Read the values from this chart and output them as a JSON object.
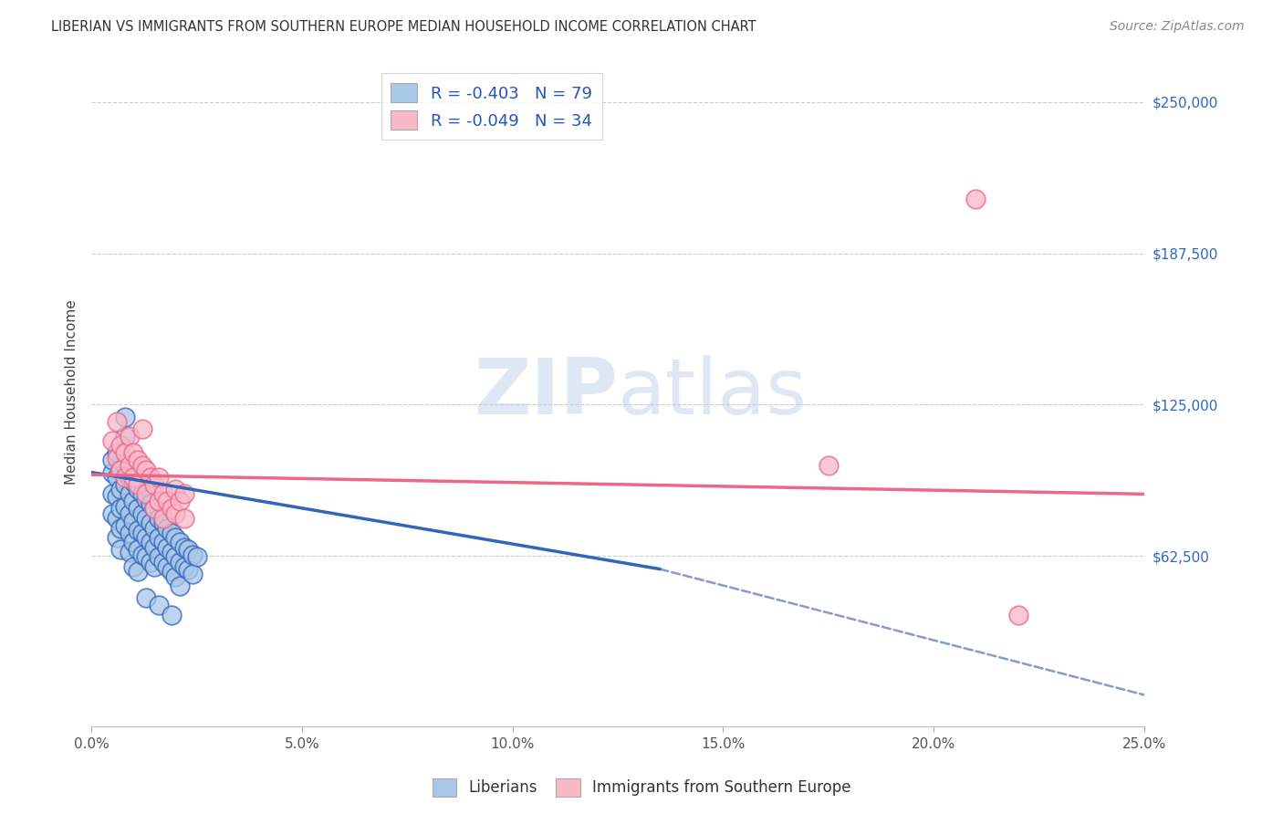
{
  "title": "LIBERIAN VS IMMIGRANTS FROM SOUTHERN EUROPE MEDIAN HOUSEHOLD INCOME CORRELATION CHART",
  "source": "Source: ZipAtlas.com",
  "ylabel": "Median Household Income",
  "xlim": [
    0.0,
    0.25
  ],
  "ylim": [
    -8000,
    268000
  ],
  "legend_blue_label": "R = -0.403   N = 79",
  "legend_pink_label": "R = -0.049   N = 34",
  "legend_label_blue": "Liberians",
  "legend_label_pink": "Immigrants from Southern Europe",
  "blue_color": "#a8c8e8",
  "pink_color": "#f8b8c8",
  "blue_line_color": "#3366bb",
  "pink_line_color": "#ee6688",
  "dashed_line_color": "#8899cc",
  "watermark_zip": "ZIP",
  "watermark_atlas": "atlas",
  "blue_points": [
    [
      0.005,
      97000
    ],
    [
      0.005,
      102000
    ],
    [
      0.005,
      88000
    ],
    [
      0.005,
      80000
    ],
    [
      0.006,
      105000
    ],
    [
      0.006,
      95000
    ],
    [
      0.006,
      87000
    ],
    [
      0.006,
      78000
    ],
    [
      0.006,
      70000
    ],
    [
      0.007,
      98000
    ],
    [
      0.007,
      90000
    ],
    [
      0.007,
      82000
    ],
    [
      0.007,
      74000
    ],
    [
      0.007,
      65000
    ],
    [
      0.008,
      120000
    ],
    [
      0.008,
      112000
    ],
    [
      0.008,
      100000
    ],
    [
      0.008,
      92000
    ],
    [
      0.008,
      83000
    ],
    [
      0.008,
      75000
    ],
    [
      0.009,
      95000
    ],
    [
      0.009,
      88000
    ],
    [
      0.009,
      80000
    ],
    [
      0.009,
      72000
    ],
    [
      0.009,
      64000
    ],
    [
      0.01,
      93000
    ],
    [
      0.01,
      85000
    ],
    [
      0.01,
      77000
    ],
    [
      0.01,
      68000
    ],
    [
      0.01,
      58000
    ],
    [
      0.011,
      90000
    ],
    [
      0.011,
      82000
    ],
    [
      0.011,
      73000
    ],
    [
      0.011,
      65000
    ],
    [
      0.011,
      56000
    ],
    [
      0.012,
      88000
    ],
    [
      0.012,
      80000
    ],
    [
      0.012,
      72000
    ],
    [
      0.012,
      63000
    ],
    [
      0.013,
      86000
    ],
    [
      0.013,
      78000
    ],
    [
      0.013,
      70000
    ],
    [
      0.013,
      62000
    ],
    [
      0.014,
      84000
    ],
    [
      0.014,
      76000
    ],
    [
      0.014,
      68000
    ],
    [
      0.014,
      60000
    ],
    [
      0.015,
      82000
    ],
    [
      0.015,
      74000
    ],
    [
      0.015,
      66000
    ],
    [
      0.015,
      58000
    ],
    [
      0.016,
      78000
    ],
    [
      0.016,
      70000
    ],
    [
      0.016,
      62000
    ],
    [
      0.017,
      76000
    ],
    [
      0.017,
      68000
    ],
    [
      0.017,
      60000
    ],
    [
      0.018,
      74000
    ],
    [
      0.018,
      66000
    ],
    [
      0.018,
      58000
    ],
    [
      0.019,
      72000
    ],
    [
      0.019,
      64000
    ],
    [
      0.019,
      56000
    ],
    [
      0.02,
      70000
    ],
    [
      0.02,
      62000
    ],
    [
      0.02,
      54000
    ],
    [
      0.021,
      68000
    ],
    [
      0.021,
      60000
    ],
    [
      0.021,
      50000
    ],
    [
      0.022,
      66000
    ],
    [
      0.022,
      58000
    ],
    [
      0.023,
      65000
    ],
    [
      0.023,
      57000
    ],
    [
      0.024,
      63000
    ],
    [
      0.024,
      55000
    ],
    [
      0.025,
      62000
    ],
    [
      0.013,
      45000
    ],
    [
      0.016,
      42000
    ],
    [
      0.019,
      38000
    ]
  ],
  "pink_points": [
    [
      0.005,
      110000
    ],
    [
      0.006,
      103000
    ],
    [
      0.006,
      118000
    ],
    [
      0.007,
      108000
    ],
    [
      0.007,
      98000
    ],
    [
      0.008,
      105000
    ],
    [
      0.008,
      95000
    ],
    [
      0.009,
      100000
    ],
    [
      0.009,
      112000
    ],
    [
      0.01,
      95000
    ],
    [
      0.01,
      105000
    ],
    [
      0.011,
      92000
    ],
    [
      0.011,
      102000
    ],
    [
      0.012,
      115000
    ],
    [
      0.012,
      100000
    ],
    [
      0.013,
      98000
    ],
    [
      0.013,
      88000
    ],
    [
      0.014,
      95000
    ],
    [
      0.015,
      92000
    ],
    [
      0.015,
      82000
    ],
    [
      0.016,
      95000
    ],
    [
      0.016,
      85000
    ],
    [
      0.017,
      88000
    ],
    [
      0.017,
      78000
    ],
    [
      0.018,
      85000
    ],
    [
      0.019,
      82000
    ],
    [
      0.02,
      90000
    ],
    [
      0.02,
      80000
    ],
    [
      0.021,
      85000
    ],
    [
      0.022,
      78000
    ],
    [
      0.022,
      88000
    ],
    [
      0.21,
      210000
    ],
    [
      0.175,
      100000
    ],
    [
      0.22,
      38000
    ]
  ],
  "blue_line_solid": {
    "x0": 0.0,
    "y0": 97000,
    "x1": 0.135,
    "y1": 57000
  },
  "blue_line_dashed": {
    "x0": 0.135,
    "y0": 57000,
    "x1": 0.25,
    "y1": 5000
  },
  "pink_line": {
    "x0": 0.0,
    "y0": 96000,
    "x1": 0.25,
    "y1": 88000
  }
}
